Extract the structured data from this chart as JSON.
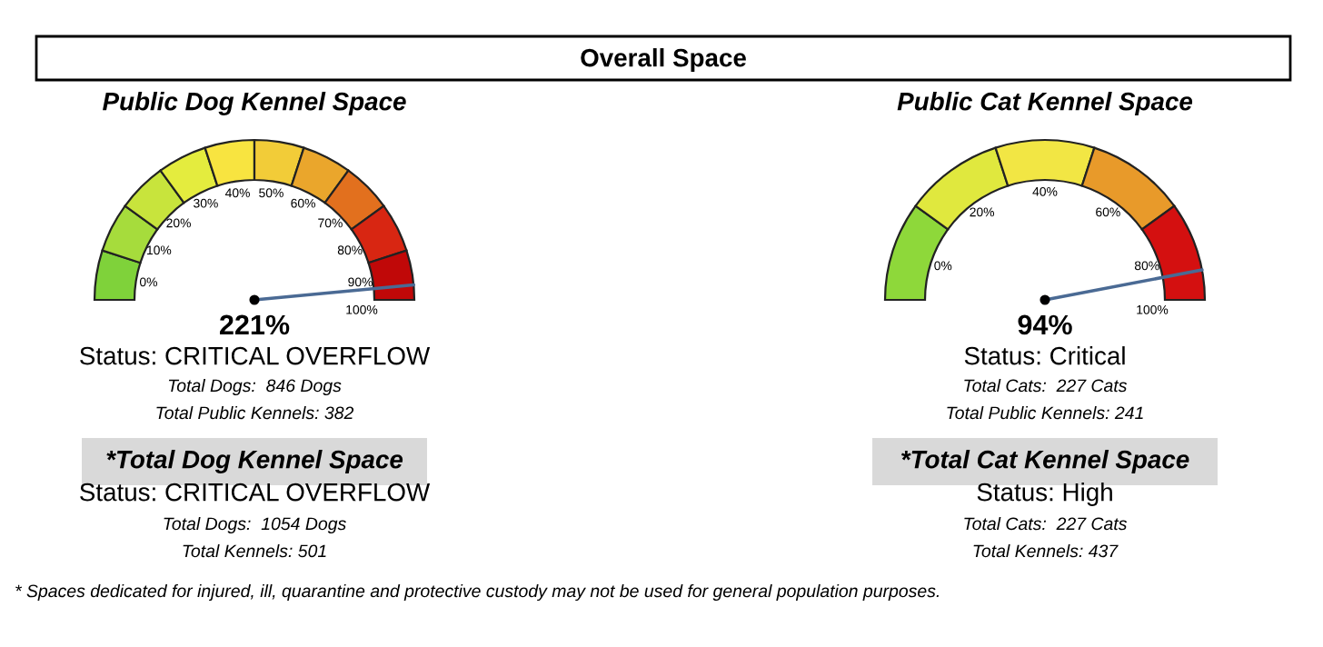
{
  "chart_data": [
    {
      "type": "other",
      "title": "Overall Space",
      "annotations": [
        "* Spaces dedicated for injured, ill, quarantine and protective custody may not be used for general population purposes."
      ]
    },
    {
      "type": "donut",
      "title": "Public Dog Kennel Space",
      "categories": [
        "0%",
        "10%",
        "20%",
        "30%",
        "40%",
        "50%",
        "60%",
        "70%",
        "80%",
        "90%"
      ],
      "values": [
        10,
        10,
        10,
        10,
        10,
        10,
        10,
        10,
        10,
        10
      ],
      "colors": [
        "#7fd23a",
        "#a6dc3c",
        "#c8e43c",
        "#e4ec3e",
        "#f8e440",
        "#f2cc38",
        "#eaa62c",
        "#e2701e",
        "#d82612",
        "#c00808"
      ],
      "needle": "90%",
      "annotations": [
        "221%",
        "Status: CRITICAL OVERFLOW",
        "Total Dogs:  846 Dogs",
        "Total Public Kennels: 382",
        "*Total Dog Kennel Space",
        "Status: CRITICAL OVERFLOW",
        "Total Dogs:  1054 Dogs",
        "Total Kennels: 501",
        "100%"
      ]
    },
    {
      "type": "donut",
      "title": "Public Cat Kennel Space",
      "categories": [
        "0%",
        "20%",
        "40%",
        "60%",
        "80%"
      ],
      "values": [
        20,
        20,
        20,
        20,
        20
      ],
      "colors": [
        "#8ed83a",
        "#e0e83e",
        "#f2e644",
        "#e89a2a",
        "#d41010"
      ],
      "needle": "80%",
      "annotations": [
        "94%",
        "Status: Critical",
        "Total Cats:  227 Cats",
        "Total Public Kennels: 241",
        "*Total Cat Kennel Space",
        "Status: High",
        "Total Cats:  227 Cats",
        "Total Kennels: 437",
        "100%"
      ]
    }
  ]
}
